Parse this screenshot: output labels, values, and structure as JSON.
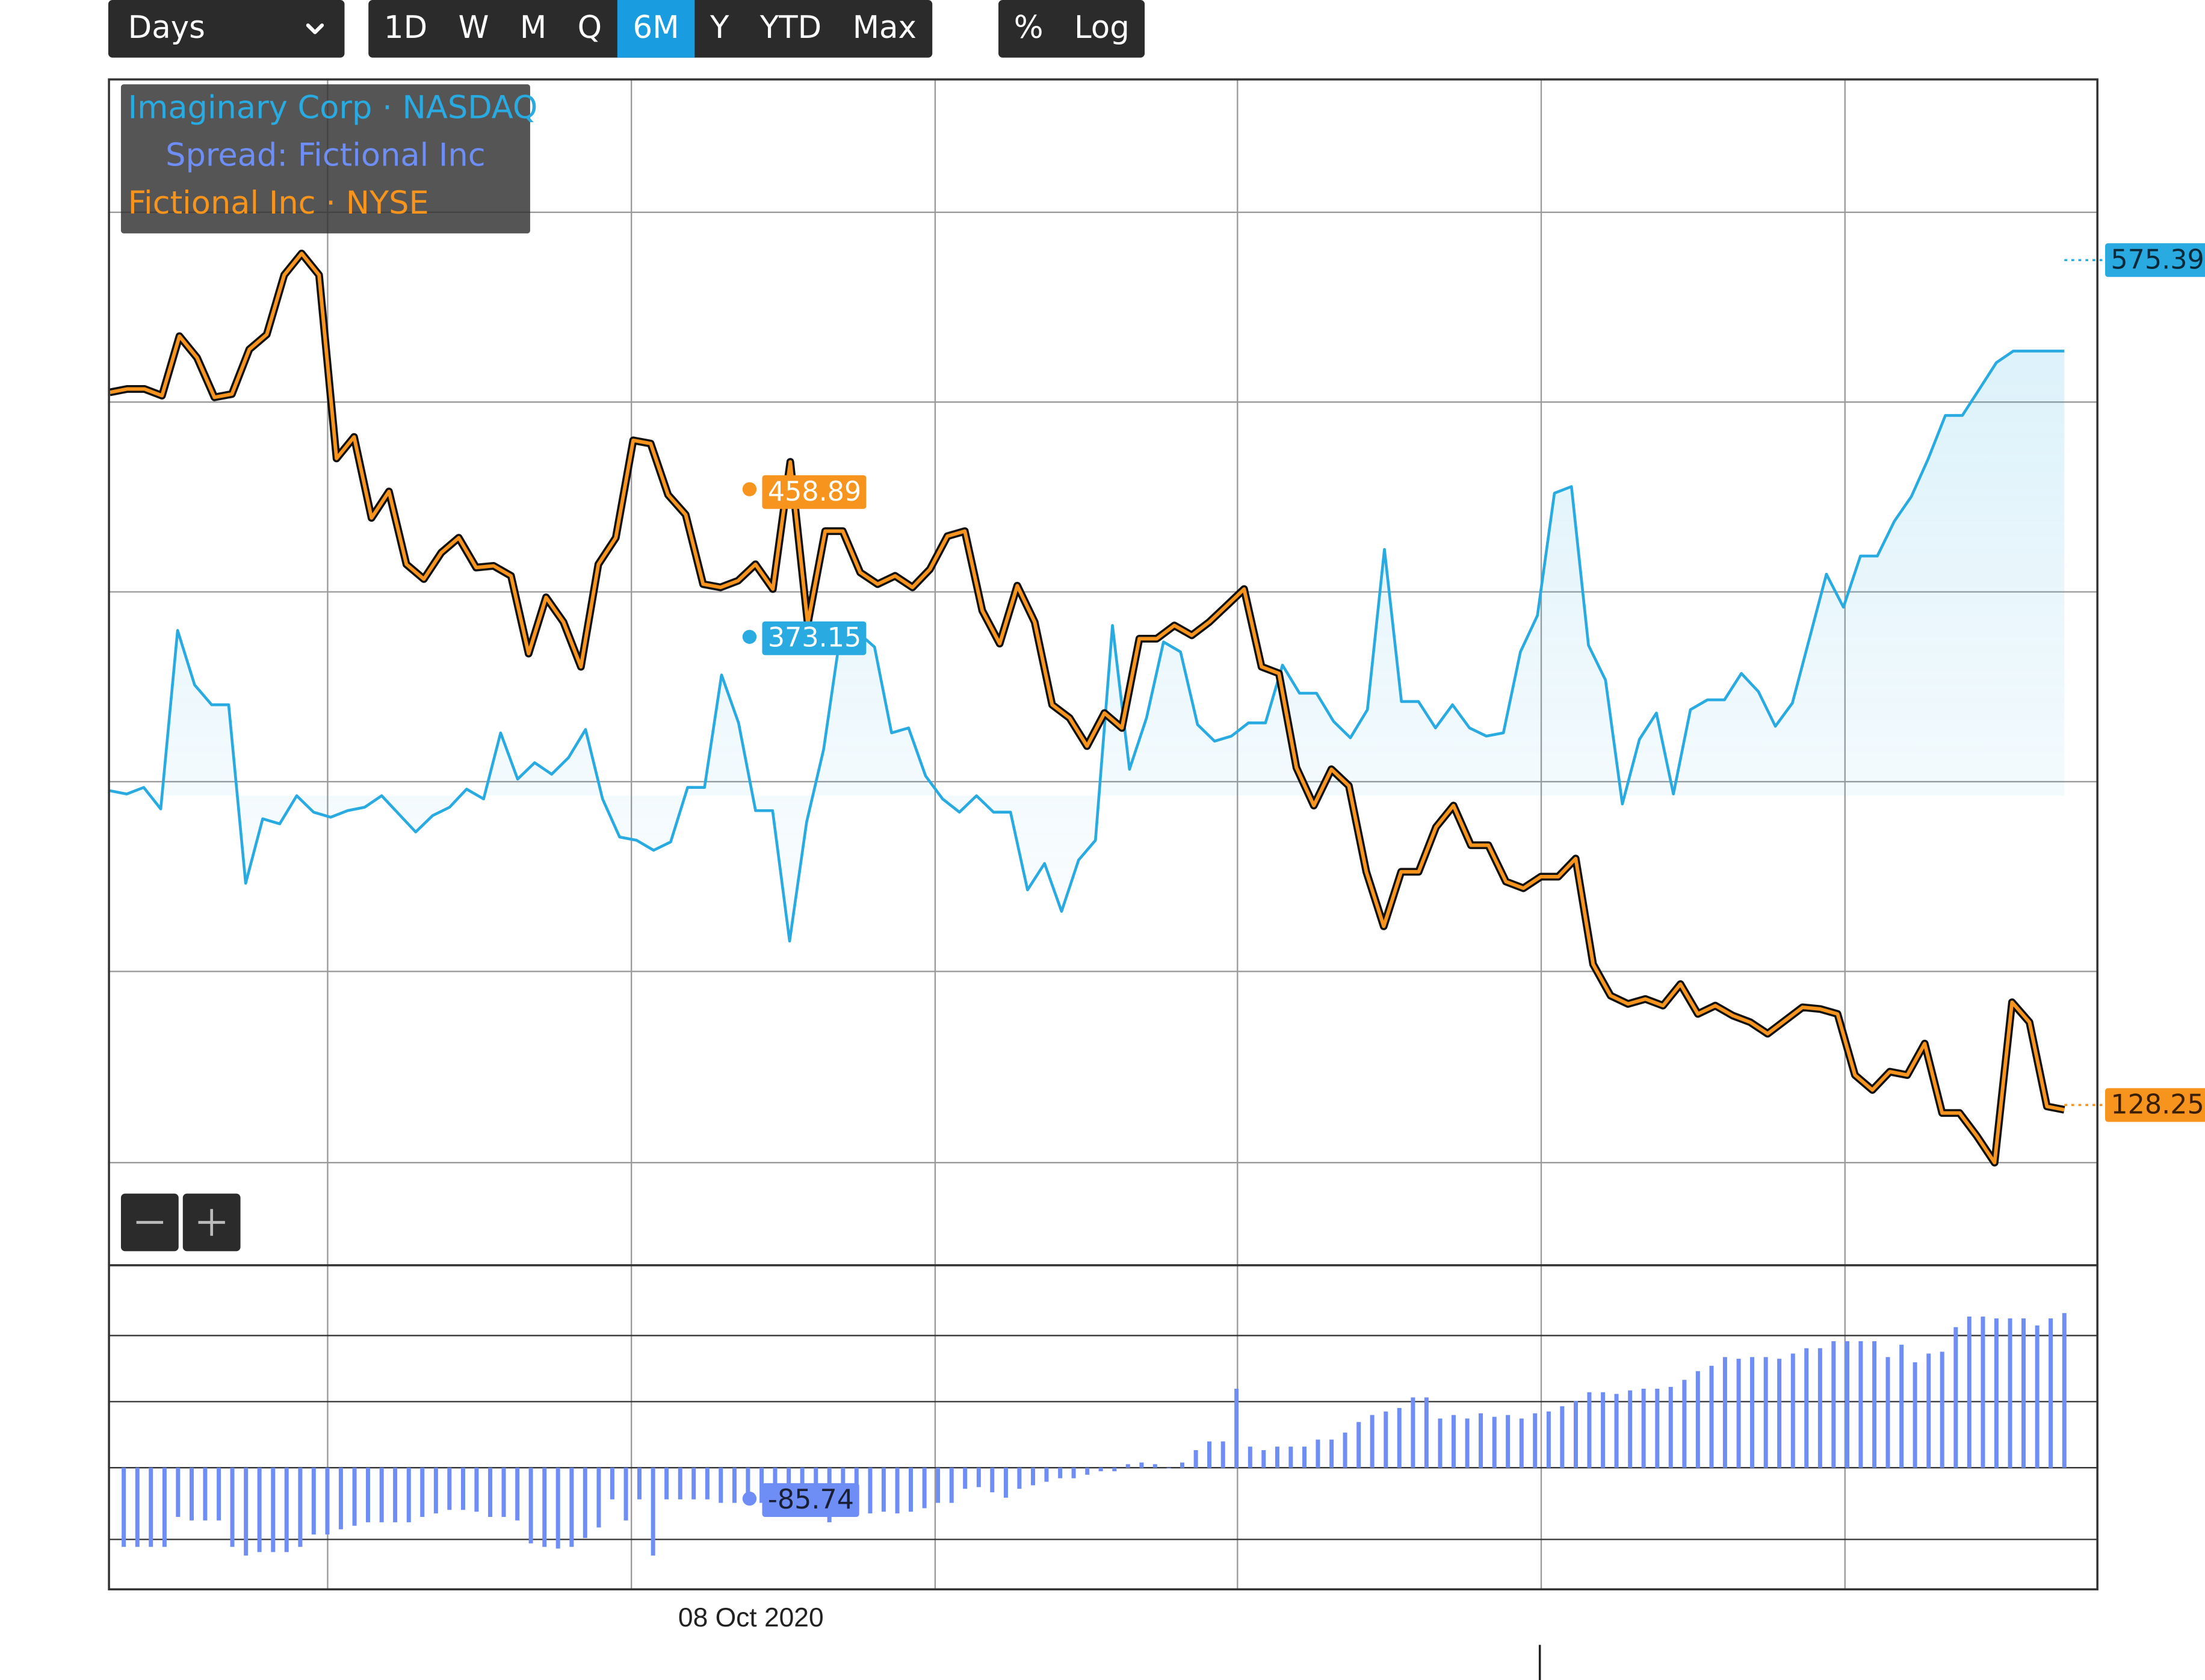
{
  "toolbar": {
    "period_select": {
      "value": "Days",
      "icon": "chevron-down-icon"
    },
    "ranges": [
      "1D",
      "W",
      "M",
      "Q",
      "6M",
      "Y",
      "YTD",
      "Max"
    ],
    "active_range": "6M",
    "scale_buttons": [
      "%",
      "Log"
    ]
  },
  "legend": {
    "series_a": "Imaginary Corp · NASDAQ",
    "spread": "Spread: Fictional Inc",
    "series_b": "Fictional Inc · NYSE"
  },
  "zoom": {
    "out_icon": "minus-icon",
    "in_icon": "plus-icon"
  },
  "colors": {
    "imaginary": "#29abe2",
    "fictional": "#f7941d",
    "spread": "#6e8ef5",
    "toolbar_bg": "#2b2b2b",
    "active": "#1a9de0"
  },
  "chart_data": {
    "type": "line",
    "x_label_shown": "08 Oct 2020",
    "series": [
      {
        "name": "Imaginary Corp · NASDAQ",
        "last_value": "575.39",
        "crosshair_value": "373.15",
        "values": [
          303,
          301,
          305,
          292,
          400,
          367,
          355,
          355,
          247,
          286,
          283,
          300,
          290,
          287,
          291,
          293,
          300,
          289,
          278,
          288,
          293,
          304,
          298,
          338,
          310,
          320,
          313,
          323,
          340,
          298,
          275,
          273,
          267,
          272,
          305,
          305,
          373,
          344,
          291,
          291,
          212,
          284,
          328,
          398,
          399,
          390,
          338,
          341,
          312,
          298,
          290,
          300,
          290,
          290,
          243,
          259,
          230,
          261,
          273,
          403,
          316,
          347,
          393,
          387,
          343,
          333,
          336,
          344,
          344,
          379,
          362,
          362,
          345,
          335,
          352,
          449,
          357,
          357,
          341,
          355,
          341,
          336,
          338,
          387,
          409,
          483,
          487,
          391,
          370,
          295,
          334,
          350,
          301,
          352,
          358,
          358,
          374,
          363,
          342,
          356,
          395,
          434,
          414,
          445,
          445,
          466,
          481,
          504,
          530,
          530,
          546,
          562,
          569,
          569,
          569,
          569
        ]
      },
      {
        "name": "Fictional Inc · NYSE",
        "last_value": "128.25",
        "crosshair_value": "458.89",
        "values": [
          544,
          546,
          546,
          542,
          578,
          565,
          541,
          543,
          570,
          579,
          615,
          628,
          615,
          504,
          517,
          468,
          484,
          440,
          431,
          447,
          456,
          438,
          439,
          433,
          386,
          420,
          405,
          378,
          440,
          456,
          515,
          513,
          482,
          470,
          428,
          426,
          430,
          440,
          425,
          502,
          404,
          460,
          460,
          435,
          428,
          433,
          426,
          437,
          457,
          460,
          412,
          392,
          427,
          405,
          355,
          347,
          330,
          350,
          341,
          395,
          395,
          403,
          397,
          405,
          415,
          425,
          378,
          374,
          317,
          294,
          316,
          306,
          254,
          221,
          254,
          254,
          281,
          294,
          270,
          270,
          248,
          244,
          251,
          251,
          262,
          198,
          179,
          174,
          177,
          173,
          186,
          168,
          173,
          167,
          163,
          156,
          164,
          172,
          171,
          168,
          131,
          122,
          133,
          131,
          150,
          108,
          108,
          94,
          78,
          175,
          163,
          112,
          110
        ]
      },
      {
        "name": "Spread: Fictional Inc",
        "crosshair_value": "-85.74",
        "values": [
          -45,
          -45,
          -45,
          -45,
          -28,
          -30,
          -30,
          -30,
          -45,
          -50,
          -48,
          -48,
          -48,
          -45,
          -38,
          -38,
          -35,
          -33,
          -31,
          -31,
          -31,
          -31,
          -28,
          -26,
          -24,
          -24,
          -25,
          -28,
          -28,
          -30,
          -43,
          -45,
          -46,
          -45,
          -40,
          -34,
          -18,
          -30,
          -18,
          -50,
          -18,
          -18,
          -18,
          -18,
          -20,
          -20,
          -20,
          -20,
          -15,
          -20,
          -17,
          -23,
          -31,
          -28,
          -23,
          -26,
          -25,
          -26,
          -25,
          -23,
          -20,
          -20,
          -12,
          -11,
          -14,
          -17,
          -12,
          -10,
          -8,
          -6,
          -6,
          -4,
          -2,
          -2,
          2,
          3,
          2,
          0,
          3,
          10,
          15,
          15,
          45,
          12,
          10,
          12,
          12,
          12,
          16,
          16,
          20,
          26,
          30,
          32,
          34,
          40,
          40,
          28,
          30,
          28,
          31,
          29,
          30,
          28,
          31,
          32,
          35,
          38,
          43,
          43,
          42,
          44,
          45,
          45,
          46,
          50,
          55,
          58,
          63,
          62,
          63,
          63,
          62,
          65,
          68,
          68,
          72,
          72,
          72,
          72,
          63,
          70,
          60,
          65,
          66,
          80,
          86,
          86,
          85,
          85,
          85,
          81,
          85,
          88
        ]
      }
    ],
    "grid": true
  }
}
